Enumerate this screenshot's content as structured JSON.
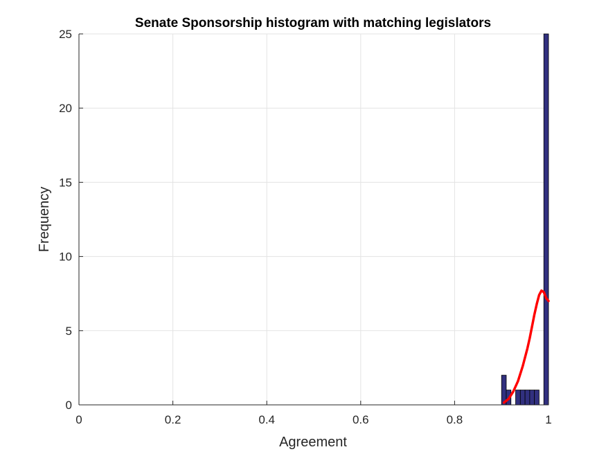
{
  "chart_data": {
    "type": "bar",
    "title": "Senate Sponsorship histogram with matching legislators",
    "xlabel": "Agreement",
    "ylabel": "Frequency",
    "xlim": [
      0,
      1
    ],
    "ylim": [
      0,
      25
    ],
    "xticks": [
      0,
      0.2,
      0.4,
      0.6,
      0.8,
      1
    ],
    "xtick_labels": [
      "0",
      "0.2",
      "0.4",
      "0.6",
      "0.8",
      "1"
    ],
    "yticks": [
      0,
      5,
      10,
      15,
      20,
      25
    ],
    "ytick_labels": [
      "0",
      "5",
      "10",
      "15",
      "20",
      "25"
    ],
    "grid": true,
    "bar_color": "#31307f",
    "fit_color": "#ff0000",
    "bins": [
      {
        "start": 0.9,
        "end": 0.91,
        "count": 2
      },
      {
        "start": 0.91,
        "end": 0.92,
        "count": 1
      },
      {
        "start": 0.92,
        "end": 0.93,
        "count": 0
      },
      {
        "start": 0.93,
        "end": 0.94,
        "count": 1
      },
      {
        "start": 0.94,
        "end": 0.95,
        "count": 1
      },
      {
        "start": 0.95,
        "end": 0.96,
        "count": 1
      },
      {
        "start": 0.96,
        "end": 0.97,
        "count": 1
      },
      {
        "start": 0.97,
        "end": 0.98,
        "count": 1
      },
      {
        "start": 0.98,
        "end": 0.99,
        "count": 0
      },
      {
        "start": 0.99,
        "end": 1.0,
        "count": 25
      }
    ],
    "fit_curve": {
      "x": [
        0.905,
        0.915,
        0.925,
        0.935,
        0.945,
        0.955,
        0.96,
        0.965,
        0.97,
        0.975,
        0.98,
        0.985,
        0.99,
        0.995,
        1.0
      ],
      "y": [
        0.15,
        0.4,
        0.9,
        1.6,
        2.6,
        3.8,
        4.5,
        5.3,
        6.1,
        6.8,
        7.4,
        7.7,
        7.6,
        7.2,
        7.0
      ]
    }
  }
}
